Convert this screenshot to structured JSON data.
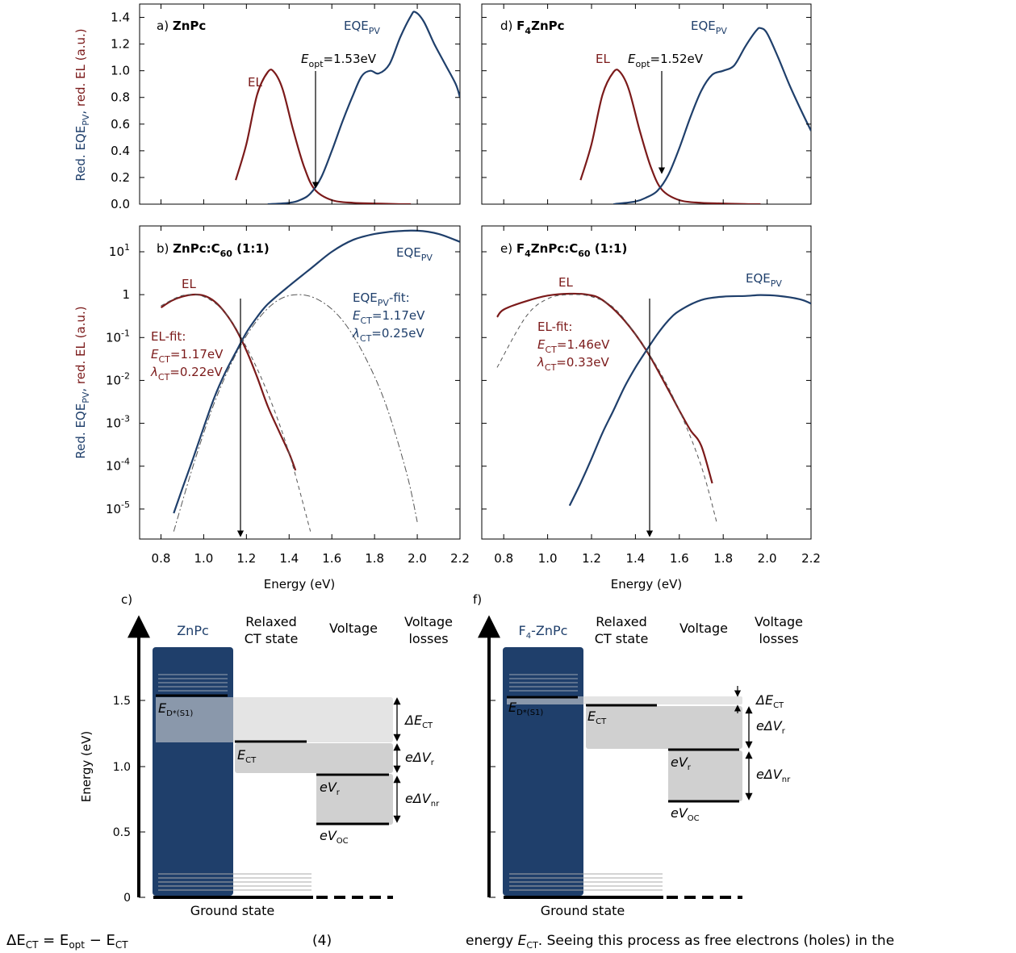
{
  "colors": {
    "el": "#7b1a1a",
    "eqe": "#1f3f6b",
    "axis": "#000000",
    "fit": "#555555",
    "block": "#1f3f6b",
    "shade_light": "#e3e3e3",
    "shade_dark": "#cccccc"
  },
  "axes": {
    "x_label": "Energy (eV)",
    "y_label_top": "Red. EQE_PV, red. EL (a.u.)",
    "y_label_bottom": "Red. EQE_PV, red. EL (a.u.)",
    "x_ticks": [
      "0.8",
      "1.0",
      "1.2",
      "1.4",
      "1.6",
      "1.8",
      "2.0",
      "2.2"
    ],
    "y_ticks_linear": [
      "0.0",
      "0.2",
      "0.4",
      "0.6",
      "0.8",
      "1.0",
      "1.2",
      "1.4"
    ],
    "y_ticks_log": [
      "10^1",
      "1",
      "10^-1",
      "10^-2",
      "10^-3",
      "10^-4",
      "10^-5"
    ]
  },
  "panels": {
    "a": {
      "letter": "a)",
      "title": "ZnPc",
      "el_label": "EL",
      "eqe_label": "EQE_PV",
      "eopt_text": "=1.53eV"
    },
    "d": {
      "letter": "d)",
      "title": "F4ZnPc",
      "el_label": "EL",
      "eqe_label": "EQE_PV",
      "eopt_text": "=1.52eV"
    },
    "b": {
      "letter": "b)",
      "title": "ZnPc:C60 (1:1)",
      "el_label": "EL",
      "eqe_label": "EQE_PV",
      "el_fit_title": "EL-fit:",
      "el_fit_ect": "=1.17eV",
      "el_fit_lambda": "=0.22eV",
      "eqe_fit_title": "-fit:",
      "eqe_fit_ect": "=1.17eV",
      "eqe_fit_lambda": "=0.25eV"
    },
    "e": {
      "letter": "e)",
      "title": "F4ZnPc:C60 (1:1)",
      "el_label": "EL",
      "eqe_label": "EQE_PV",
      "el_fit_title": "EL-fit:",
      "el_fit_ect": "=1.46eV",
      "el_fit_lambda": "=0.33eV"
    }
  },
  "chart_data": [
    {
      "type": "line",
      "panel": "a",
      "title": "a) ZnPc",
      "ylim": [
        0,
        1.5
      ],
      "xlim": [
        0.7,
        2.2
      ],
      "series": [
        {
          "name": "EL",
          "x": [
            1.15,
            1.2,
            1.25,
            1.3,
            1.33,
            1.37,
            1.42,
            1.47,
            1.52,
            1.6,
            1.7,
            1.8,
            1.9,
            1.97
          ],
          "y": [
            0.18,
            0.45,
            0.82,
            0.99,
            0.99,
            0.86,
            0.55,
            0.28,
            0.11,
            0.03,
            0.01,
            0.005,
            0.001,
            0.0
          ]
        },
        {
          "name": "EQE_PV",
          "x": [
            1.3,
            1.4,
            1.45,
            1.5,
            1.55,
            1.6,
            1.65,
            1.7,
            1.74,
            1.78,
            1.82,
            1.87,
            1.92,
            1.97,
            1.99,
            2.03,
            2.08,
            2.13,
            2.18,
            2.2
          ],
          "y": [
            0.0,
            0.01,
            0.03,
            0.08,
            0.2,
            0.4,
            0.62,
            0.82,
            0.96,
            1.0,
            0.98,
            1.05,
            1.25,
            1.41,
            1.44,
            1.37,
            1.2,
            1.05,
            0.9,
            0.8
          ]
        }
      ],
      "annotations": [
        {
          "text": "E_opt=1.53eV",
          "x": 1.53
        }
      ]
    },
    {
      "type": "line",
      "panel": "d",
      "title": "d) F4ZnPc",
      "ylim": [
        0,
        1.5
      ],
      "xlim": [
        0.7,
        2.2
      ],
      "series": [
        {
          "name": "EL",
          "x": [
            1.15,
            1.2,
            1.25,
            1.3,
            1.33,
            1.37,
            1.42,
            1.47,
            1.52,
            1.6,
            1.7,
            1.8,
            1.9,
            1.97
          ],
          "y": [
            0.18,
            0.45,
            0.82,
            0.99,
            0.99,
            0.86,
            0.55,
            0.28,
            0.11,
            0.03,
            0.01,
            0.005,
            0.001,
            0.0
          ]
        },
        {
          "name": "EQE_PV",
          "x": [
            1.3,
            1.4,
            1.45,
            1.5,
            1.55,
            1.6,
            1.65,
            1.7,
            1.75,
            1.8,
            1.85,
            1.9,
            1.95,
            1.97,
            2.0,
            2.05,
            2.1,
            2.15,
            2.2
          ],
          "y": [
            0.0,
            0.02,
            0.05,
            0.1,
            0.22,
            0.42,
            0.65,
            0.85,
            0.97,
            1.0,
            1.04,
            1.18,
            1.3,
            1.32,
            1.28,
            1.1,
            0.9,
            0.72,
            0.55
          ]
        }
      ],
      "annotations": [
        {
          "text": "E_opt=1.52eV",
          "x": 1.52
        }
      ]
    },
    {
      "type": "line",
      "panel": "b",
      "title": "b) ZnPc:C60 (1:1)",
      "yscale": "log",
      "ylim": [
        2e-06,
        40
      ],
      "xlim": [
        0.7,
        2.2
      ],
      "series": [
        {
          "name": "EL",
          "x": [
            0.8,
            0.85,
            0.9,
            0.95,
            1.0,
            1.05,
            1.1,
            1.15,
            1.2,
            1.25,
            1.3,
            1.35,
            1.4,
            1.43
          ],
          "y": [
            0.5,
            0.72,
            0.9,
            1.0,
            0.95,
            0.7,
            0.38,
            0.16,
            0.05,
            0.012,
            0.0025,
            0.0007,
            0.0002,
            8e-05
          ]
        },
        {
          "name": "EQE_PV",
          "x": [
            0.86,
            0.9,
            0.95,
            1.0,
            1.05,
            1.1,
            1.15,
            1.2,
            1.25,
            1.3,
            1.4,
            1.5,
            1.6,
            1.7,
            1.8,
            1.9,
            2.0,
            2.1,
            2.2
          ],
          "y": [
            8e-06,
            3e-05,
            0.00015,
            0.0008,
            0.004,
            0.015,
            0.045,
            0.13,
            0.3,
            0.6,
            1.6,
            4,
            10,
            19,
            26,
            30,
            31,
            26,
            17
          ]
        },
        {
          "name": "EL-fit",
          "x": [
            0.8,
            0.9,
            1.0,
            1.1,
            1.2,
            1.3,
            1.4,
            1.5
          ],
          "y": [
            0.55,
            0.95,
            0.9,
            0.38,
            0.06,
            0.005,
            0.0002,
            3e-06
          ]
        },
        {
          "name": "EQE_PV-fit",
          "x": [
            0.86,
            0.95,
            1.05,
            1.15,
            1.25,
            1.35,
            1.45,
            1.55,
            1.65,
            1.75,
            1.85,
            1.95,
            2.0
          ],
          "y": [
            3e-06,
            0.0001,
            0.003,
            0.04,
            0.25,
            0.75,
            1.0,
            0.7,
            0.25,
            0.04,
            0.003,
            7e-05,
            5e-06
          ]
        }
      ],
      "annotations": [
        {
          "text": "EL-fit: E_CT=1.17eV λ_CT=0.22eV"
        },
        {
          "text": "EQE_PV-fit: E_CT=1.17eV λ_CT=0.25eV"
        }
      ]
    },
    {
      "type": "line",
      "panel": "e",
      "title": "e) F4ZnPc:C60 (1:1)",
      "yscale": "log",
      "ylim": [
        2e-06,
        40
      ],
      "xlim": [
        0.7,
        2.2
      ],
      "series": [
        {
          "name": "EL",
          "x": [
            0.77,
            0.8,
            0.9,
            1.0,
            1.1,
            1.18,
            1.25,
            1.35,
            1.45,
            1.55,
            1.6,
            1.65,
            1.7,
            1.75
          ],
          "y": [
            0.3,
            0.45,
            0.7,
            0.95,
            1.05,
            1.0,
            0.75,
            0.25,
            0.05,
            0.006,
            0.002,
            0.0007,
            0.0003,
            4e-05
          ]
        },
        {
          "name": "EQE_PV",
          "x": [
            1.1,
            1.15,
            1.2,
            1.25,
            1.3,
            1.35,
            1.4,
            1.45,
            1.5,
            1.55,
            1.6,
            1.7,
            1.8,
            1.9,
            1.97,
            2.05,
            2.15,
            2.2
          ],
          "y": [
            1.2e-05,
            4e-05,
            0.00015,
            0.0006,
            0.002,
            0.007,
            0.02,
            0.05,
            0.12,
            0.25,
            0.42,
            0.75,
            0.9,
            0.93,
            0.98,
            0.94,
            0.78,
            0.62
          ]
        },
        {
          "name": "EL-fit",
          "x": [
            0.77,
            0.9,
            1.0,
            1.1,
            1.2,
            1.3,
            1.4,
            1.5,
            1.6,
            1.7,
            1.77
          ],
          "y": [
            0.02,
            0.3,
            0.8,
            1.0,
            0.9,
            0.5,
            0.12,
            0.02,
            0.002,
            0.0001,
            5e-06
          ]
        }
      ],
      "annotations": [
        {
          "text": "EL-fit: E_CT=1.46eV λ_CT=0.33eV"
        }
      ]
    }
  ],
  "diagram_c": {
    "letter": "c)",
    "y_label": "Energy (eV)",
    "y_ticks": [
      "0",
      "0.5",
      "1.0",
      "1.5"
    ],
    "col_donor": "ZnPc",
    "col_ct": [
      "Relaxed",
      "CT state"
    ],
    "col_voltage": "Voltage",
    "col_losses": [
      "Voltage",
      "losses"
    ],
    "ground_state": "Ground state",
    "levels": {
      "E_D*(S1)": 1.53,
      "E_CT": 1.17,
      "eV_r": 0.94,
      "eV_OC": 0.56
    },
    "labels": {
      "ed": "E",
      "ed_sub": "D*(S1)",
      "ect": "E",
      "ect_sub": "CT",
      "evr": "eV",
      "evr_sub": "r",
      "evoc": "eV",
      "evoc_sub": "OC",
      "dect": "ΔE",
      "dect_sub": "CT",
      "dvr": "eΔV",
      "dvr_sub": "r",
      "dvnr": "eΔV",
      "dvnr_sub": "nr"
    }
  },
  "diagram_f": {
    "letter": "f)",
    "y_label": "",
    "col_donor": "F4-ZnPc",
    "col_donor_sub": "4",
    "col_ct": [
      "Relaxed",
      "CT state"
    ],
    "col_voltage": "Voltage",
    "col_losses": [
      "Voltage",
      "losses"
    ],
    "ground_state": "Ground state",
    "levels": {
      "E_D*(S1)": 1.52,
      "E_CT": 1.46,
      "eV_r": 1.12,
      "eV_OC": 0.73
    }
  },
  "footer": {
    "equation_left": "ΔE",
    "equation_sub1": "CT",
    "equation_mid": " = E",
    "equation_sub2": "opt",
    "equation_minus": " − E",
    "equation_sub3": "CT",
    "equation_number": "(4)",
    "right_text_1": "energy ",
    "right_text_e": "E",
    "right_text_sub": "CT",
    "right_text_2": ". Seeing this process as free electrons (holes) in the"
  }
}
